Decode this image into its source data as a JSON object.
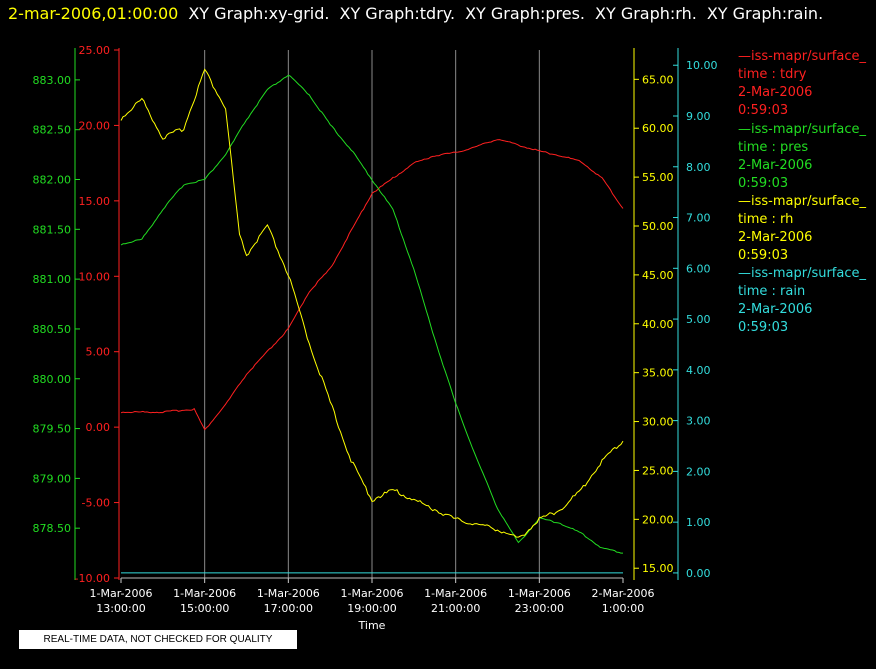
{
  "header": {
    "timestamp": "2-mar-2006,01:00:00",
    "titles": [
      "XY Graph:xy-grid.",
      "XY Graph:tdry.",
      "XY Graph:pres.",
      "XY Graph:rh.",
      "XY Graph:rain."
    ]
  },
  "legend": [
    {
      "source": "—iss-mapr/surface_",
      "var": "time : tdry",
      "date": "2-Mar-2006",
      "time": "0:59:03",
      "color": "#ff2020"
    },
    {
      "source": "—iss-mapr/surface_",
      "var": "time : pres",
      "date": "2-Mar-2006",
      "time": "0:59:03",
      "color": "#22dd22"
    },
    {
      "source": "—iss-mapr/surface_",
      "var": "time : rh",
      "date": "2-Mar-2006",
      "time": "0:59:03",
      "color": "#ffff00"
    },
    {
      "source": "—iss-mapr/surface_",
      "var": "time : rain",
      "date": "2-Mar-2006",
      "time": "0:59:03",
      "color": "#33dddd"
    }
  ],
  "notice": "REAL-TIME DATA, NOT CHECKED FOR QUALITY",
  "chart_data": {
    "type": "line",
    "xlabel": "Time",
    "x_ticks": [
      {
        "d": "1-Mar-2006",
        "t": "13:00:00"
      },
      {
        "d": "1-Mar-2006",
        "t": "15:00:00"
      },
      {
        "d": "1-Mar-2006",
        "t": "17:00:00"
      },
      {
        "d": "1-Mar-2006",
        "t": "19:00:00"
      },
      {
        "d": "1-Mar-2006",
        "t": "21:00:00"
      },
      {
        "d": "1-Mar-2006",
        "t": "23:00:00"
      },
      {
        "d": "2-Mar-2006",
        "t": "1:00:00"
      }
    ],
    "xlim": [
      "2006-03-01 13:00",
      "2006-03-02 01:00"
    ],
    "grid": {
      "vertical": true,
      "horizontal": false
    },
    "axes": {
      "pres": {
        "ticks": [
          "878.50",
          "879.00",
          "879.50",
          "880.00",
          "880.50",
          "881.00",
          "881.50",
          "882.00",
          "882.50",
          "883.00"
        ],
        "ylim": [
          878.0,
          883.3
        ],
        "color": "#22dd22"
      },
      "tdry": {
        "ticks": [
          "-10.00",
          "-5.00",
          "0.00",
          "5.00",
          "10.00",
          "15.00",
          "20.00",
          "25.00"
        ],
        "ylim": [
          -10,
          25
        ],
        "color": "#ff2020"
      },
      "rh": {
        "ticks": [
          "15.00",
          "20.00",
          "25.00",
          "30.00",
          "35.00",
          "40.00",
          "45.00",
          "50.00",
          "55.00",
          "60.00",
          "65.00"
        ],
        "ylim": [
          14,
          68
        ],
        "color": "#ffff00"
      },
      "rain": {
        "ticks": [
          "0.00",
          "1.00",
          "2.00",
          "3.00",
          "4.00",
          "5.00",
          "6.00",
          "7.00",
          "8.00",
          "9.00",
          "10.00"
        ],
        "ylim": [
          -0.1,
          10.3
        ],
        "color": "#33dddd"
      }
    },
    "series": [
      {
        "name": "tdry",
        "axis": "tdry",
        "color": "#ff2020",
        "x": [
          "2006-03-01 13:00",
          "2006-03-01 14:00",
          "2006-03-01 14:45",
          "2006-03-01 15:00",
          "2006-03-01 15:30",
          "2006-03-01 16:00",
          "2006-03-01 16:30",
          "2006-03-01 17:00",
          "2006-03-01 17:30",
          "2006-03-01 18:00",
          "2006-03-01 18:30",
          "2006-03-01 19:00",
          "2006-03-01 19:30",
          "2006-03-01 20:00",
          "2006-03-01 20:30",
          "2006-03-01 21:00",
          "2006-03-01 21:30",
          "2006-03-01 22:00",
          "2006-03-01 22:30",
          "2006-03-01 23:00",
          "2006-03-01 23:30",
          "2006-03-02 00:00",
          "2006-03-02 00:30",
          "2006-03-02 01:00"
        ],
        "y": [
          1.0,
          1.0,
          1.2,
          -0.2,
          1.5,
          3.5,
          5.0,
          6.5,
          9.0,
          10.5,
          13.0,
          15.5,
          16.5,
          17.5,
          18.0,
          18.2,
          18.6,
          19.1,
          18.7,
          18.3,
          18.0,
          17.6,
          16.5,
          14.5
        ]
      },
      {
        "name": "pres",
        "axis": "pres",
        "color": "#22dd22",
        "x": [
          "2006-03-01 13:00",
          "2006-03-01 13:30",
          "2006-03-01 14:00",
          "2006-03-01 14:30",
          "2006-03-01 15:00",
          "2006-03-01 15:30",
          "2006-03-01 16:00",
          "2006-03-01 16:30",
          "2006-03-01 17:00",
          "2006-03-01 17:30",
          "2006-03-01 18:00",
          "2006-03-01 18:30",
          "2006-03-01 19:00",
          "2006-03-01 19:30",
          "2006-03-01 20:00",
          "2006-03-01 20:30",
          "2006-03-01 21:00",
          "2006-03-01 21:30",
          "2006-03-01 22:00",
          "2006-03-01 22:30",
          "2006-03-01 23:00",
          "2006-03-01 23:30",
          "2006-03-02 00:00",
          "2006-03-02 00:30",
          "2006-03-02 01:00"
        ],
        "y": [
          881.35,
          881.4,
          881.7,
          881.95,
          882.0,
          882.25,
          882.6,
          882.9,
          883.05,
          882.85,
          882.55,
          882.3,
          882.0,
          881.7,
          881.1,
          880.4,
          879.75,
          879.2,
          878.7,
          878.35,
          878.6,
          878.55,
          878.45,
          878.3,
          878.25
        ]
      },
      {
        "name": "rh",
        "axis": "rh",
        "color": "#ffff00",
        "x": [
          "2006-03-01 13:00",
          "2006-03-01 13:30",
          "2006-03-01 14:00",
          "2006-03-01 14:30",
          "2006-03-01 15:00",
          "2006-03-01 15:30",
          "2006-03-01 15:50",
          "2006-03-01 16:00",
          "2006-03-01 16:30",
          "2006-03-01 17:00",
          "2006-03-01 17:30",
          "2006-03-01 18:00",
          "2006-03-01 18:30",
          "2006-03-01 19:00",
          "2006-03-01 19:30",
          "2006-03-01 20:00",
          "2006-03-01 20:30",
          "2006-03-01 21:00",
          "2006-03-01 21:30",
          "2006-03-01 22:00",
          "2006-03-01 22:30",
          "2006-03-01 23:00",
          "2006-03-01 23:30",
          "2006-03-02 00:00",
          "2006-03-02 00:30",
          "2006-03-02 01:00"
        ],
        "y": [
          61,
          63,
          59,
          60,
          66,
          62,
          49,
          47,
          50,
          45,
          38,
          32,
          26,
          22,
          23,
          22,
          21,
          20,
          19.5,
          19,
          18,
          20,
          21,
          23,
          26,
          28
        ]
      },
      {
        "name": "rain",
        "axis": "rain",
        "color": "#33dddd",
        "x": [
          "2006-03-01 13:00",
          "2006-03-02 01:00"
        ],
        "y": [
          0,
          0
        ]
      }
    ]
  }
}
